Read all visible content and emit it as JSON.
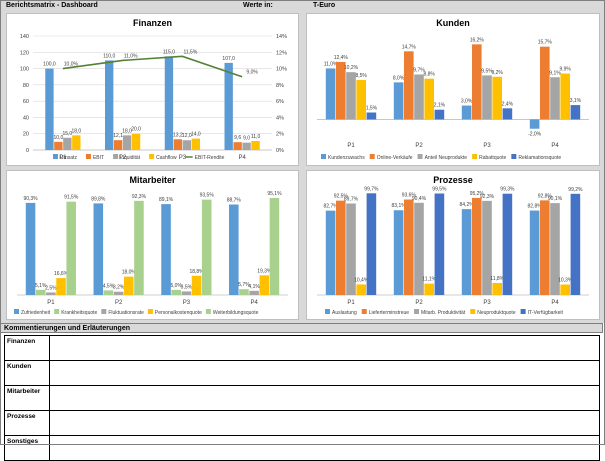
{
  "header": {
    "title": "Berichtsmatrix - Dashboard",
    "unit_label": "Werte in:",
    "unit_value": "T-Euro"
  },
  "colors": {
    "blue": "#5b9bd5",
    "orange": "#ed7d31",
    "gray": "#a5a5a5",
    "yellow": "#ffc000",
    "darkblue": "#4472c4",
    "green": "#70ad47",
    "lightgreen": "#a9d18e"
  },
  "charts": {
    "finanzen": {
      "chart_data": {
        "type": "bar",
        "title": "Finanzen",
        "categories": [
          "P1",
          "P2",
          "P3",
          "P4"
        ],
        "ylim": [
          0,
          140
        ],
        "y2lim": [
          0,
          14
        ],
        "yticks": [
          "0",
          "20",
          "40",
          "60",
          "80",
          "100",
          "120",
          "140"
        ],
        "y2ticks": [
          "0%",
          "2%",
          "4%",
          "6%",
          "8%",
          "10%",
          "12%",
          "14%"
        ],
        "series": [
          {
            "name": "Umsatz",
            "color": "#5b9bd5",
            "values": [
              100.0,
              110.0,
              115.0,
              107.0
            ],
            "labels": [
              "100,0",
              "110,0",
              "115,0",
              "107,0"
            ]
          },
          {
            "name": "EBIT",
            "color": "#ed7d31",
            "values": [
              10.0,
              12.1,
              13.2,
              9.6
            ],
            "labels": [
              "10,0",
              "12,1",
              "13,2",
              "9,6"
            ]
          },
          {
            "name": "Liquidität",
            "color": "#a5a5a5",
            "values": [
              15.0,
              18.0,
              12.0,
              9.0
            ],
            "labels": [
              "15,0",
              "18,0",
              "12,0",
              "9,0"
            ]
          },
          {
            "name": "Cashflow",
            "color": "#ffc000",
            "values": [
              18.0,
              20.0,
              14.0,
              11.0
            ],
            "labels": [
              "18,0",
              "20,0",
              "14,0",
              "11,0"
            ]
          }
        ],
        "line": {
          "name": "EBIT-Rendite",
          "color": "#548235",
          "values": [
            10.0,
            11.0,
            11.5,
            9.0
          ],
          "labels": [
            "10,0%",
            "11,0%",
            "11,5%",
            "9,0%"
          ]
        }
      }
    },
    "kunden": {
      "chart_data": {
        "type": "bar",
        "title": "Kunden",
        "categories": [
          "P1",
          "P2",
          "P3",
          "P4"
        ],
        "ylim": [
          -4,
          18
        ],
        "series": [
          {
            "name": "Kundenzuwachs",
            "color": "#5b9bd5",
            "values": [
              11.0,
              8.0,
              3.0,
              -2.0
            ],
            "labels": [
              "11,0%",
              "8,0%",
              "3,0%",
              "-2,0%"
            ]
          },
          {
            "name": "Online-Verkäufe",
            "color": "#ed7d31",
            "values": [
              12.4,
              14.7,
              16.2,
              15.7
            ],
            "labels": [
              "12,4%",
              "14,7%",
              "16,2%",
              "15,7%"
            ]
          },
          {
            "name": "Anteil Neuprodukte",
            "color": "#a5a5a5",
            "values": [
              10.2,
              9.7,
              9.5,
              9.1
            ],
            "labels": [
              "10,2%",
              "9,7%",
              "9,5%",
              "9,1%"
            ]
          },
          {
            "name": "Rabattquote",
            "color": "#ffc000",
            "values": [
              8.5,
              8.8,
              9.2,
              9.9
            ],
            "labels": [
              "8,5%",
              "8,8%",
              "9,2%",
              "9,9%"
            ]
          },
          {
            "name": "Reklamationsquote",
            "color": "#4472c4",
            "values": [
              1.5,
              2.1,
              2.4,
              3.1
            ],
            "labels": [
              "1,5%",
              "2,1%",
              "2,4%",
              "3,1%"
            ]
          }
        ]
      }
    },
    "mitarbeiter": {
      "chart_data": {
        "type": "bar",
        "title": "Mitarbeiter",
        "categories": [
          "P1",
          "P2",
          "P3",
          "P4"
        ],
        "ylim": [
          0,
          100
        ],
        "series": [
          {
            "name": "Zufriedenheit",
            "color": "#5b9bd5",
            "values": [
              90.3,
              89.8,
              89.1,
              88.7
            ],
            "labels": [
              "90,3%",
              "89,8%",
              "89,1%",
              "88,7%"
            ]
          },
          {
            "name": "Krankheitsquote",
            "color": "#a9d18e",
            "values": [
              5.1,
              4.5,
              5.0,
              5.7
            ],
            "labels": [
              "5,1%",
              "4,5%",
              "5,0%",
              "5,7%"
            ]
          },
          {
            "name": "Fluktuationsrate",
            "color": "#a5a5a5",
            "values": [
              2.5,
              3.2,
              3.5,
              4.1
            ],
            "labels": [
              "2,5%",
              "3,2%",
              "3,5%",
              "4,1%"
            ]
          },
          {
            "name": "Personalkostenquote",
            "color": "#ffc000",
            "values": [
              16.6,
              18.0,
              18.8,
              19.3
            ],
            "labels": [
              "16,6%",
              "18,0%",
              "18,8%",
              "19,3%"
            ]
          },
          {
            "name": "Weiterbildungsquote",
            "color": "#a9d18e",
            "values": [
              91.5,
              92.3,
              93.5,
              95.1
            ],
            "labels": [
              "91,5%",
              "92,3%",
              "93,5%",
              "95,1%"
            ]
          }
        ]
      }
    },
    "prozesse": {
      "chart_data": {
        "type": "bar",
        "title": "Prozesse",
        "categories": [
          "P1",
          "P2",
          "P3",
          "P4"
        ],
        "ylim": [
          0,
          100
        ],
        "series": [
          {
            "name": "Auslastung",
            "color": "#5b9bd5",
            "values": [
              82.7,
              83.1,
              84.2,
              82.8
            ],
            "labels": [
              "82,7%",
              "83,1%",
              "84,2%",
              "82,8%"
            ]
          },
          {
            "name": "Lieferterminstreue",
            "color": "#ed7d31",
            "values": [
              92.5,
              93.6,
              95.2,
              92.8
            ],
            "labels": [
              "92,5%",
              "93,6%",
              "95,2%",
              "92,8%"
            ]
          },
          {
            "name": "Mitarb. Produktivität",
            "color": "#a5a5a5",
            "values": [
              89.7,
              90.4,
              92.3,
              90.1
            ],
            "labels": [
              "89,7%",
              "90,4%",
              "92,3%",
              "90,1%"
            ]
          },
          {
            "name": "Neuproduktquote",
            "color": "#ffc000",
            "values": [
              10.4,
              11.1,
              11.8,
              10.3
            ],
            "labels": [
              "10,4%",
              "11,1%",
              "11,8%",
              "10,3%"
            ]
          },
          {
            "name": "IT-Verfügbarkeit",
            "color": "#4472c4",
            "values": [
              99.7,
              99.5,
              99.3,
              99.2
            ],
            "labels": [
              "99,7%",
              "99,5%",
              "99,3%",
              "99,2%"
            ]
          }
        ]
      }
    }
  },
  "comments": {
    "title": "Kommentierungen und Erläuterungen",
    "rows": [
      {
        "label": "Finanzen",
        "text": ""
      },
      {
        "label": "Kunden",
        "text": ""
      },
      {
        "label": "Mitarbeiter",
        "text": ""
      },
      {
        "label": "Prozesse",
        "text": ""
      },
      {
        "label": "Sonstiges",
        "text": ""
      }
    ]
  }
}
